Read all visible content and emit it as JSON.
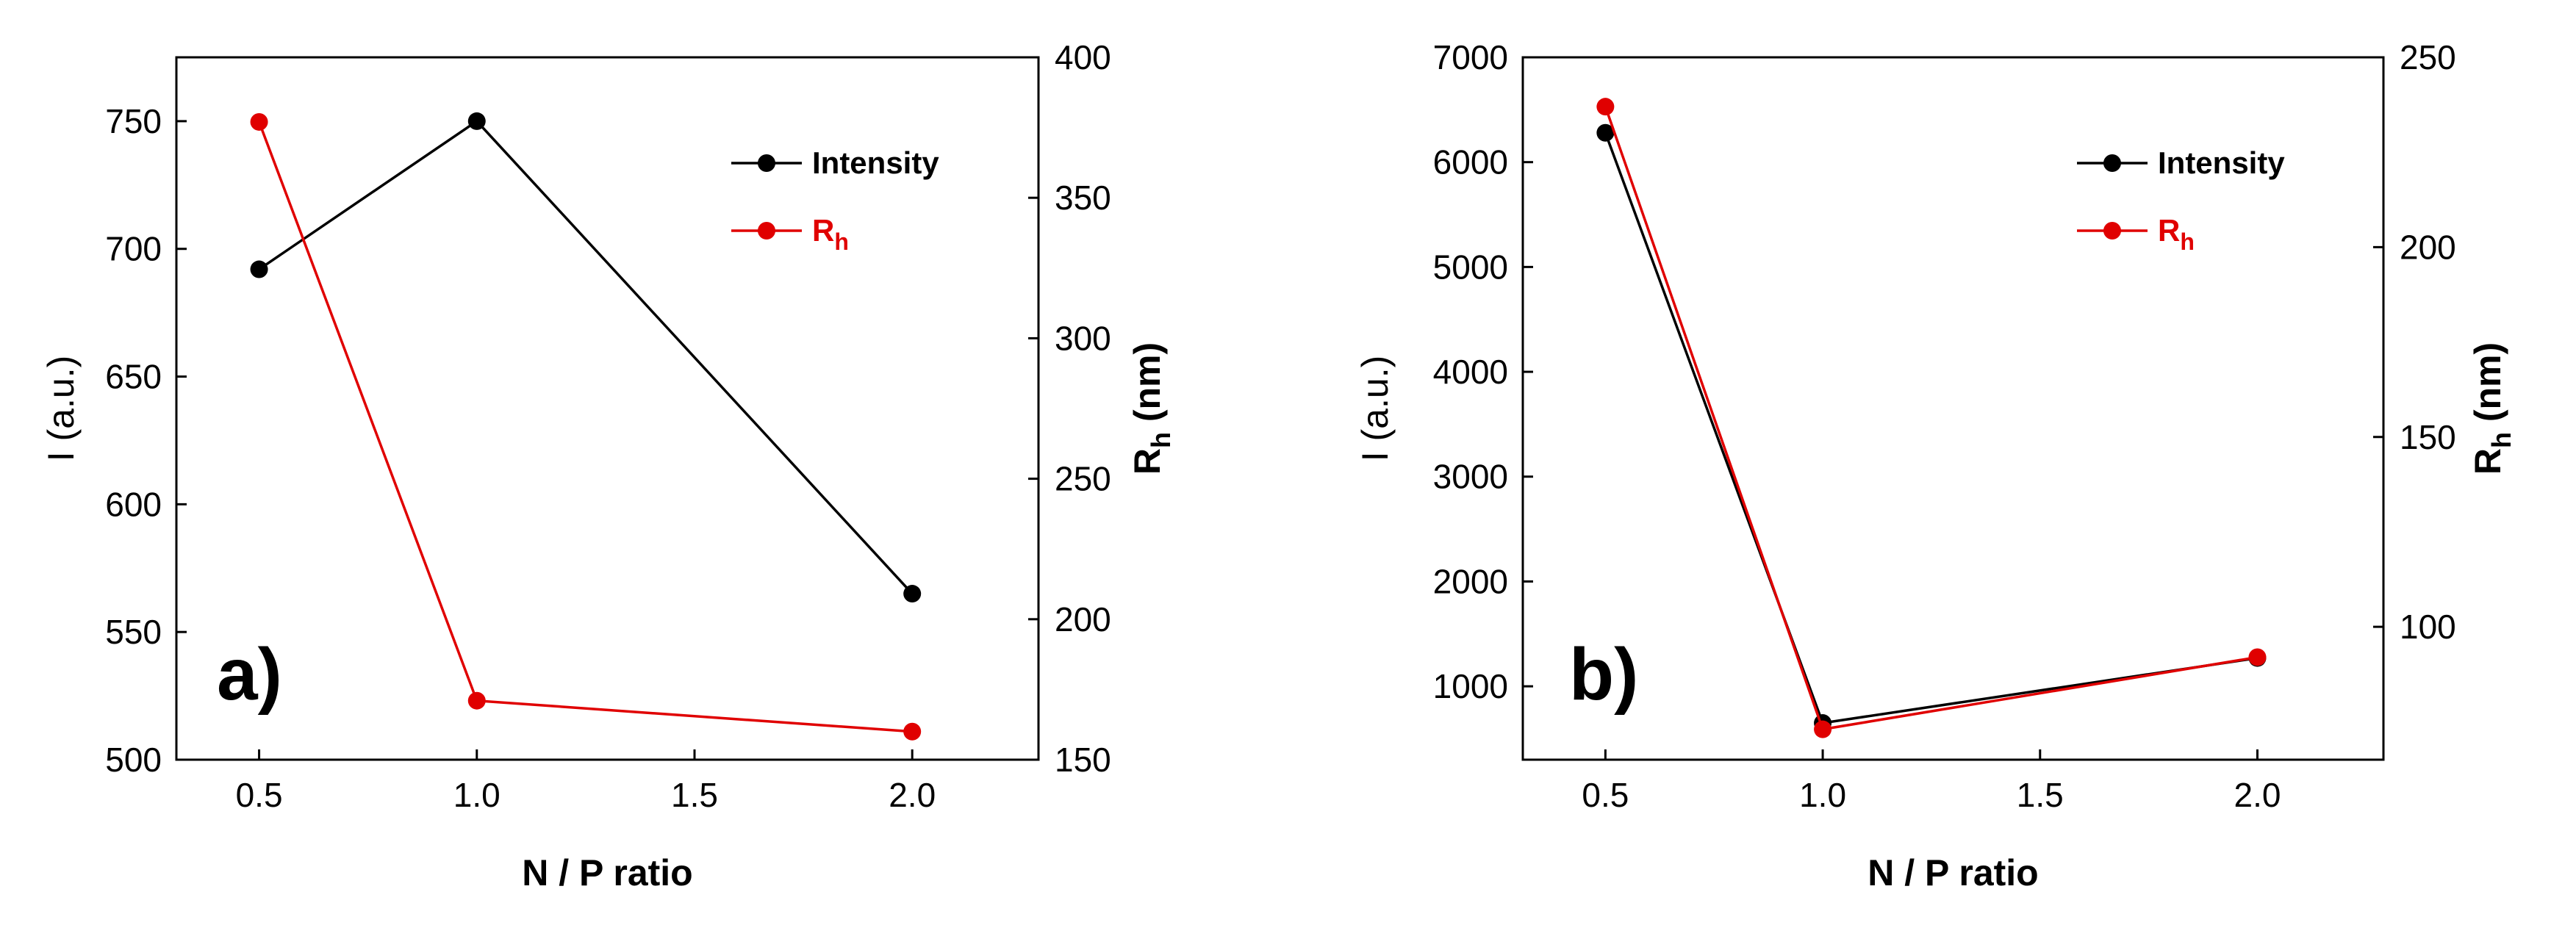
{
  "figure": {
    "colors": {
      "intensity": "#000000",
      "rh": "#e00000",
      "axis": "#000000"
    }
  },
  "chart_data": [
    {
      "type": "line",
      "panel_label": "a)",
      "xlabel": "N / P ratio",
      "ylabel": "I (a.u.)",
      "y2label_main": "R",
      "y2label_sub": "h",
      "y2label_unit": " (nm)",
      "x_tick_labels": [
        "0.5",
        "1.0",
        "1.5",
        "2.0"
      ],
      "y_tick_labels": [
        "500",
        "550",
        "600",
        "650",
        "700",
        "750"
      ],
      "y2_tick_labels": [
        "150",
        "200",
        "250",
        "300",
        "350",
        "400"
      ],
      "series": [
        {
          "name": "Intensity",
          "axis": "left",
          "color": "#000000",
          "x": [
            0.5,
            1.0,
            2.0
          ],
          "values": [
            692,
            750,
            565
          ]
        },
        {
          "name": "R",
          "name_sub": "h",
          "axis": "right",
          "color": "#e00000",
          "x": [
            0.5,
            1.0,
            2.0
          ],
          "values": [
            377,
            171,
            160
          ]
        }
      ],
      "legend": {
        "placement": "top-right",
        "items": [
          {
            "label": "Intensity"
          },
          {
            "label": "R",
            "sub": "h"
          }
        ]
      }
    },
    {
      "type": "line",
      "panel_label": "b)",
      "xlabel": "N / P ratio",
      "ylabel": "I (a.u.)",
      "y2label_main": "R",
      "y2label_sub": "h",
      "y2label_unit": " (nm)",
      "x_tick_labels": [
        "0.5",
        "1.0",
        "1.5",
        "2.0"
      ],
      "y_tick_labels": [
        "1000",
        "2000",
        "3000",
        "4000",
        "5000",
        "6000",
        "7000"
      ],
      "y2_tick_labels": [
        "100",
        "150",
        "200",
        "250"
      ],
      "series": [
        {
          "name": "Intensity",
          "axis": "left",
          "color": "#000000",
          "x": [
            0.5,
            1.0,
            2.0
          ],
          "values": [
            6280,
            650,
            1270
          ]
        },
        {
          "name": "R",
          "name_sub": "h",
          "axis": "right",
          "color": "#e00000",
          "x": [
            0.5,
            1.0,
            2.0
          ],
          "values": [
            237,
            73,
            92
          ]
        }
      ],
      "legend": {
        "placement": "top-right",
        "items": [
          {
            "label": "Intensity"
          },
          {
            "label": "R",
            "sub": "h"
          }
        ]
      }
    }
  ]
}
